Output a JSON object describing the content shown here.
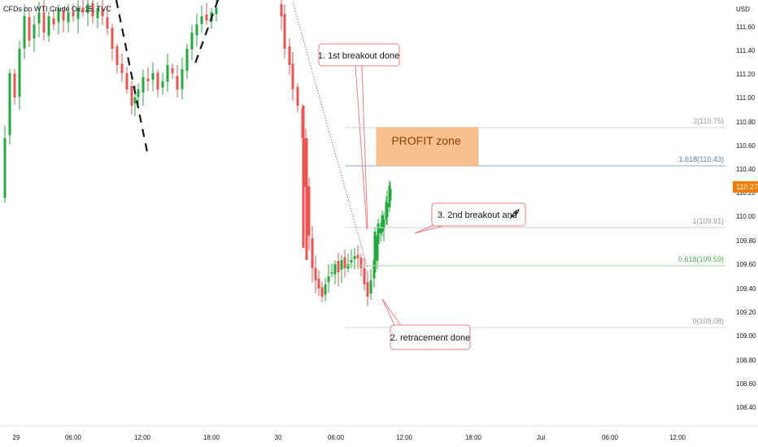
{
  "header": {
    "symbol": "CFDs on WTI Crude Oil, 15, TVC"
  },
  "y_axis": {
    "unit": "USD",
    "ticks": [
      "111.60",
      "111.40",
      "111.20",
      "111.00",
      "110.80",
      "110.60",
      "110.40",
      "110.20",
      "110.00",
      "109.80",
      "109.60",
      "109.40",
      "109.20",
      "109.00",
      "108.80",
      "108.60",
      "108.40"
    ],
    "current_price": "110.27"
  },
  "x_axis": {
    "ticks": [
      "29",
      "06:00",
      "12:00",
      "18:00",
      "30",
      "06:00",
      "12:00",
      "18:00",
      "Jul",
      "06:00",
      "12:00"
    ]
  },
  "fib_levels": [
    {
      "ratio": "2",
      "price": "110.75",
      "text": "2(110.75)"
    },
    {
      "ratio": "1.618",
      "price": "110.43",
      "text": "1.618(110.43)"
    },
    {
      "ratio": "1",
      "price": "109.91",
      "text": "1(109.91)"
    },
    {
      "ratio": "0.618",
      "price": "109.59",
      "text": "0.618(109.59)"
    },
    {
      "ratio": "0",
      "price": "109.08",
      "text": "0(109.08)"
    }
  ],
  "annotations": {
    "profit_zone": "PROFIT zone",
    "callout_1": "1. 1st breakout done",
    "callout_2": "2. retracement done",
    "callout_3": "3. 2nd breakout and",
    "callout_3_icon": "rocket-icon"
  },
  "colors": {
    "up": "#26a69a",
    "up_bright": "#22ab3c",
    "down": "#ef5350",
    "price_tag": "#f57c00",
    "profit_zone": "#f7c08d",
    "callout_border": "#f77c80"
  },
  "chart_data": {
    "type": "candlestick",
    "interval": "15",
    "y_range": [
      108.3,
      111.75
    ],
    "fib_retracement": {
      "0": 109.08,
      "0.618": 109.59,
      "1": 109.91,
      "1.618": 110.43,
      "2": 110.75
    },
    "profit_zone_range": [
      110.43,
      110.75
    ],
    "last_price": 110.27
  }
}
